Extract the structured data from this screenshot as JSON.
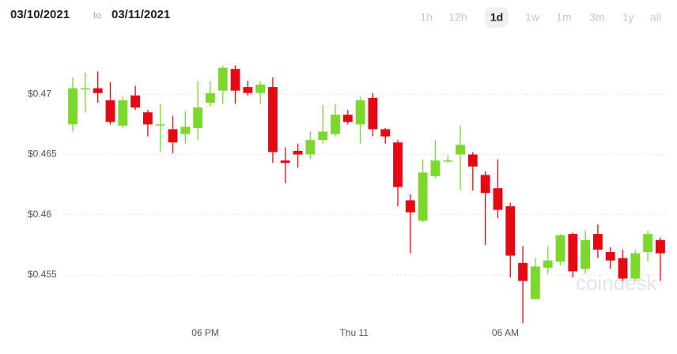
{
  "header": {
    "from": "03/10/2021",
    "separator": "to",
    "to": "03/11/2021",
    "ranges": [
      "1h",
      "12h",
      "1d",
      "1w",
      "1m",
      "3m",
      "1y",
      "all"
    ],
    "active_range": "1d"
  },
  "chart_data": {
    "type": "candlestick",
    "watermark": "coindesk",
    "up_color": "#7cd82c",
    "down_color": "#e50914",
    "grid": true,
    "x": [
      0,
      1,
      2,
      3,
      4,
      5,
      6,
      7,
      8,
      9,
      10,
      11,
      12,
      13,
      14,
      15,
      16,
      17,
      18,
      19,
      20,
      21,
      22,
      23,
      24,
      25,
      26,
      27,
      28,
      29,
      30,
      31,
      32,
      33,
      34,
      35,
      36,
      37,
      38,
      39,
      40,
      41,
      42,
      43,
      44,
      45,
      46,
      47
    ],
    "open": [
      0.4675,
      0.4704,
      0.4705,
      0.4695,
      0.4674,
      0.4699,
      0.4685,
      0.4674,
      0.4671,
      0.4667,
      0.4672,
      0.4693,
      0.4703,
      0.4721,
      0.4706,
      0.4701,
      0.4706,
      0.4645,
      0.4653,
      0.465,
      0.4662,
      0.4667,
      0.4683,
      0.4675,
      0.4697,
      0.4671,
      0.466,
      0.4612,
      0.4595,
      0.4632,
      0.4644,
      0.465,
      0.465,
      0.4633,
      0.4622,
      0.4607,
      0.456,
      0.453,
      0.4556,
      0.4561,
      0.4584,
      0.4555,
      0.4584,
      0.4569,
      0.4564,
      0.4547,
      0.4569,
      0.4579
    ],
    "high": [
      0.4714,
      0.4718,
      0.4719,
      0.471,
      0.4698,
      0.4707,
      0.4687,
      0.4692,
      0.4682,
      0.4686,
      0.4711,
      0.4711,
      0.4724,
      0.4724,
      0.4711,
      0.4711,
      0.4714,
      0.4656,
      0.4659,
      0.4669,
      0.4691,
      0.4692,
      0.4687,
      0.4698,
      0.4701,
      0.4672,
      0.4662,
      0.4617,
      0.4646,
      0.4662,
      0.4649,
      0.4674,
      0.4652,
      0.4636,
      0.4646,
      0.461,
      0.4574,
      0.4564,
      0.4574,
      0.4584,
      0.4585,
      0.4587,
      0.4592,
      0.4573,
      0.4571,
      0.4571,
      0.4587,
      0.4581
    ],
    "low": [
      0.4669,
      0.4685,
      0.4693,
      0.4675,
      0.4672,
      0.4687,
      0.4665,
      0.4652,
      0.4651,
      0.4659,
      0.4662,
      0.469,
      0.4692,
      0.4692,
      0.4699,
      0.4692,
      0.4643,
      0.4626,
      0.4639,
      0.4646,
      0.4659,
      0.4665,
      0.4675,
      0.4659,
      0.4665,
      0.4659,
      0.4607,
      0.4568,
      0.4594,
      0.463,
      0.4643,
      0.462,
      0.462,
      0.4575,
      0.4597,
      0.4548,
      0.451,
      0.453,
      0.4551,
      0.4558,
      0.4548,
      0.4551,
      0.4564,
      0.4555,
      0.4545,
      0.4545,
      0.4561,
      0.4545
    ],
    "close": [
      0.4705,
      0.4705,
      0.4701,
      0.4677,
      0.4695,
      0.4689,
      0.4675,
      0.4675,
      0.466,
      0.4673,
      0.4689,
      0.4701,
      0.4722,
      0.4703,
      0.4701,
      0.4708,
      0.4652,
      0.4643,
      0.465,
      0.4662,
      0.4669,
      0.4683,
      0.4677,
      0.4695,
      0.4671,
      0.4665,
      0.4623,
      0.4602,
      0.4635,
      0.4645,
      0.4645,
      0.4658,
      0.464,
      0.4618,
      0.4604,
      0.4566,
      0.4545,
      0.4557,
      0.4562,
      0.4583,
      0.4553,
      0.4579,
      0.4571,
      0.4562,
      0.4547,
      0.4568,
      0.4584,
      0.4568
    ],
    "xlim": [
      -0.7,
      47.7
    ],
    "xticks": [
      {
        "value": 10.6,
        "label": "06 PM"
      },
      {
        "value": 22.5,
        "label": "Thu 11"
      },
      {
        "value": 34.6,
        "label": "06 AM"
      }
    ],
    "ylim": [
      0.4508,
      0.4752
    ],
    "yticks": [
      {
        "value": 0.455,
        "label": "$0.455"
      },
      {
        "value": 0.46,
        "label": "$0.46"
      },
      {
        "value": 0.465,
        "label": "$0.465"
      },
      {
        "value": 0.47,
        "label": "$0.47"
      }
    ]
  }
}
